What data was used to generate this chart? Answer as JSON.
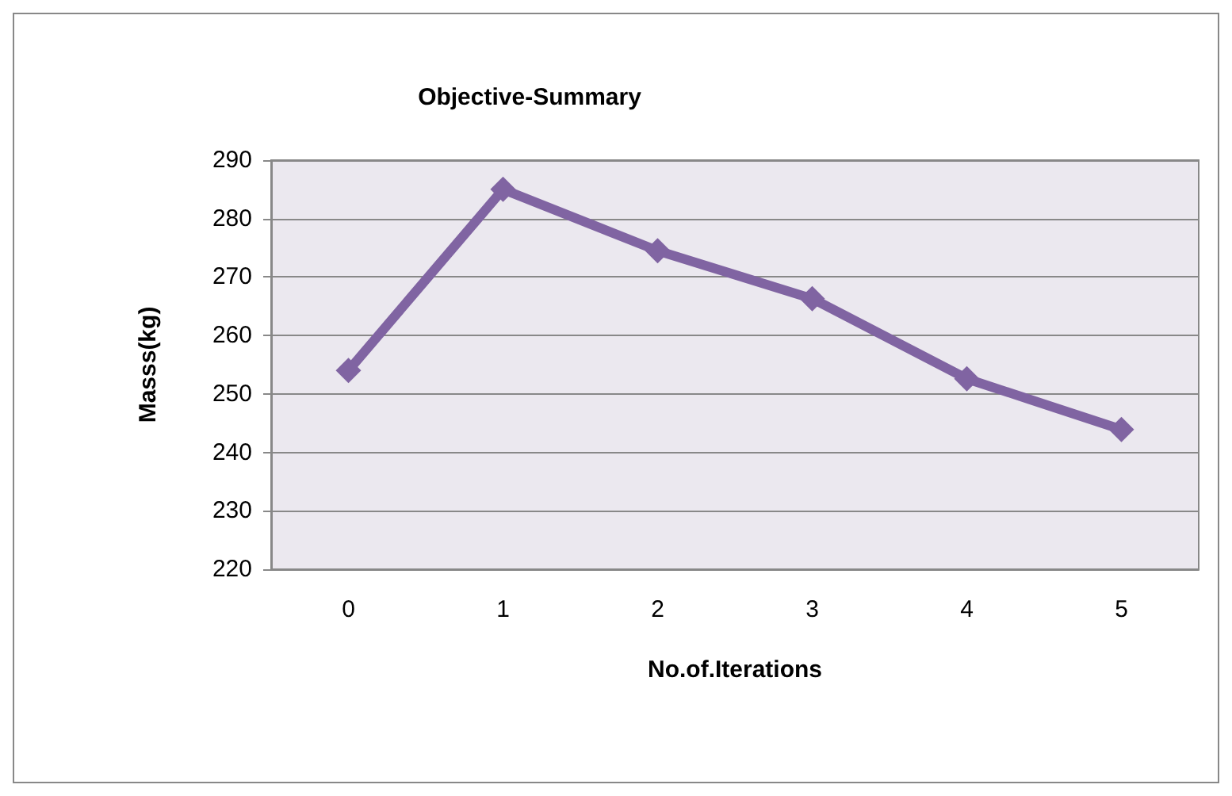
{
  "chart_data": {
    "type": "line",
    "title": "Objective-Summary",
    "xlabel": "No.of.Iterations",
    "ylabel": "Masss(kg)",
    "categories": [
      "0",
      "1",
      "2",
      "3",
      "4",
      "5"
    ],
    "series": [
      {
        "color": "#8064a2",
        "values": [
          254,
          285,
          274.5,
          266.3,
          252.6,
          243.9
        ]
      }
    ],
    "ylim": [
      220,
      290
    ],
    "yticks": [
      220,
      230,
      240,
      250,
      260,
      270,
      280,
      290
    ],
    "grid": "y",
    "marker": "diamond",
    "line_style": "solid"
  }
}
